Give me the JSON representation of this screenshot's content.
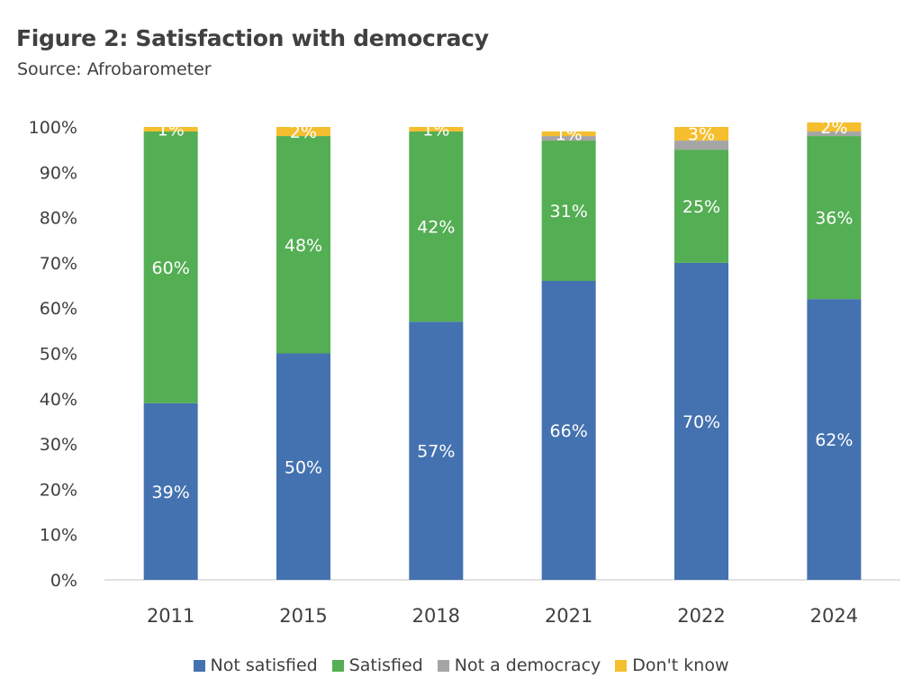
{
  "title": "Figure 2: Satisfaction with democracy",
  "subtitle": "Source: Afrobarometer",
  "chart_data": {
    "type": "bar",
    "stacked": true,
    "categories": [
      "2011",
      "2015",
      "2018",
      "2021",
      "2022",
      "2024"
    ],
    "series": [
      {
        "name": "Not satisfied",
        "color": "#4472b0",
        "values": [
          39,
          50,
          57,
          66,
          70,
          62
        ],
        "labels": [
          "39%",
          "50%",
          "57%",
          "66%",
          "70%",
          "62%"
        ]
      },
      {
        "name": "Satisfied",
        "color": "#54ae54",
        "values": [
          60,
          48,
          42,
          31,
          25,
          36
        ],
        "labels": [
          "60%",
          "48%",
          "42%",
          "31%",
          "25%",
          "36%"
        ]
      },
      {
        "name": "Not a democracy",
        "color": "#a5a5a5",
        "values": [
          0,
          0,
          0,
          1,
          2,
          1
        ],
        "labels": [
          "",
          "",
          "",
          "",
          "",
          ""
        ]
      },
      {
        "name": "Don't know",
        "color": "#f5be2e",
        "values": [
          1,
          2,
          1,
          1,
          3,
          2
        ],
        "labels": [
          "1%",
          "2%",
          "1%",
          "1%",
          "3%",
          "2%"
        ]
      }
    ],
    "ylim": [
      0,
      100
    ],
    "yticks": [
      "0%",
      "10%",
      "20%",
      "30%",
      "40%",
      "50%",
      "60%",
      "70%",
      "80%",
      "90%",
      "100%"
    ],
    "grid": false,
    "legend_position": "bottom"
  }
}
